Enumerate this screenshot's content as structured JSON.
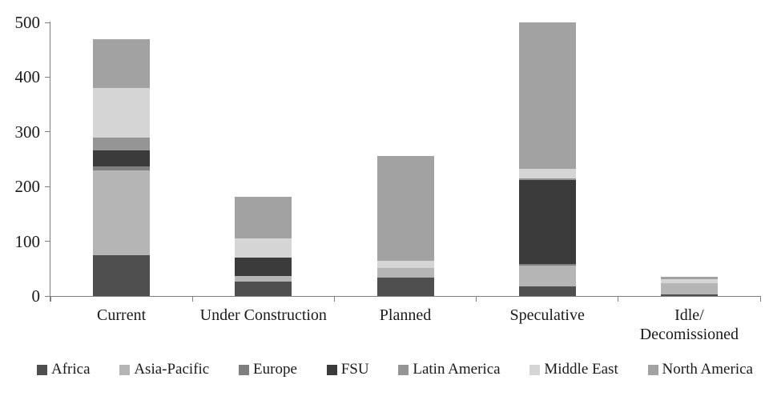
{
  "chart_data": {
    "type": "bar",
    "stacked": true,
    "title": "",
    "xlabel": "",
    "ylabel": "",
    "ylim": [
      0,
      500
    ],
    "yticks": [
      0,
      100,
      200,
      300,
      400,
      500
    ],
    "grid": false,
    "legend_position": "bottom",
    "axis_color": "#808080",
    "text_color": "#1a1a1a",
    "categories": [
      "Current",
      "Under Construction",
      "Planned",
      "Speculative",
      "Idle/\nDecomissioned"
    ],
    "series": [
      {
        "name": "Africa",
        "color": "#4f4f4f",
        "values": [
          75,
          26,
          33,
          18,
          3
        ]
      },
      {
        "name": "Asia-Pacific",
        "color": "#b5b5b5",
        "values": [
          155,
          11,
          18,
          37,
          21
        ]
      },
      {
        "name": "Europe",
        "color": "#7f7f7f",
        "values": [
          7,
          0,
          0,
          4,
          0
        ]
      },
      {
        "name": "FSU",
        "color": "#3b3b3b",
        "values": [
          29,
          33,
          0,
          153,
          0
        ]
      },
      {
        "name": "Latin America",
        "color": "#959595",
        "values": [
          23,
          0,
          0,
          3,
          0
        ]
      },
      {
        "name": "Middle East",
        "color": "#d5d5d5",
        "values": [
          91,
          35,
          13,
          17,
          6
        ]
      },
      {
        "name": "North America",
        "color": "#a2a2a2",
        "values": [
          90,
          77,
          192,
          268,
          5
        ]
      }
    ],
    "totals": [
      470,
      182,
      256,
      500,
      35
    ]
  }
}
